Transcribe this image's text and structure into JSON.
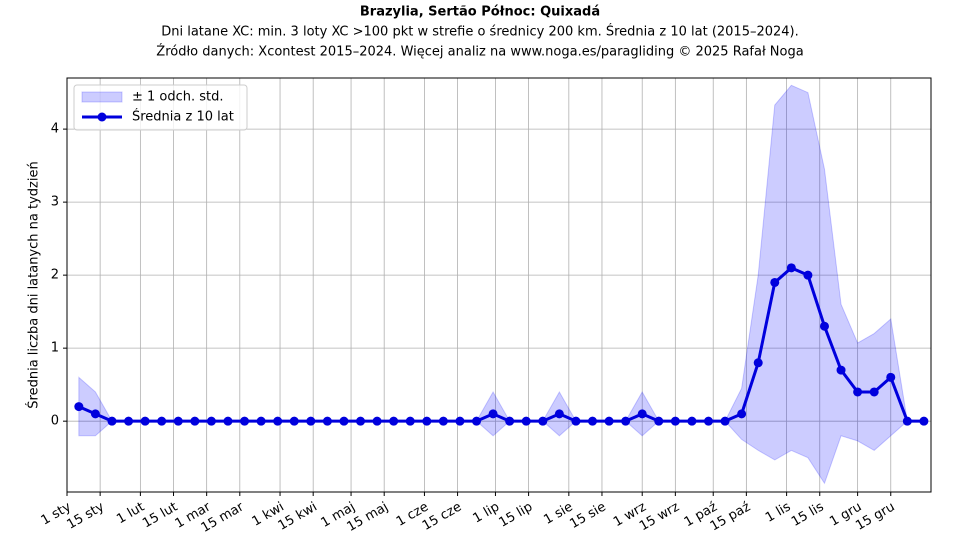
{
  "chart_data": {
    "type": "line",
    "title": "Brazylia, Sertão Północ: Quixadá",
    "subtitle": [
      "Dni latane XC: min. 3 loty XC >100 pkt w strefie o średnicy 200 km. Średnia z 10 lat (2015–2024).",
      "Źródło danych: Xcontest 2015–2024. Więcej analiz na www.noga.es/paragliding © 2025 Rafał Noga"
    ],
    "ylabel": "Średnia liczba dni latanych na tydzień",
    "x": [
      5,
      12,
      19,
      26,
      33,
      40,
      47,
      54,
      61,
      68,
      75,
      82,
      89,
      96,
      103,
      110,
      117,
      124,
      131,
      138,
      145,
      152,
      159,
      166,
      173,
      180,
      187,
      194,
      201,
      208,
      215,
      222,
      229,
      236,
      243,
      250,
      257,
      264,
      271,
      278,
      285,
      292,
      299,
      306,
      313,
      320,
      327,
      334,
      341,
      348,
      355,
      362
    ],
    "series": [
      {
        "name": "Średnia z 10 lat",
        "color": "#0000dd",
        "values": [
          0.2,
          0.1,
          0,
          0,
          0,
          0,
          0,
          0,
          0,
          0,
          0,
          0,
          0,
          0,
          0,
          0,
          0,
          0,
          0,
          0,
          0,
          0,
          0,
          0,
          0,
          0.1,
          0,
          0,
          0,
          0.1,
          0,
          0,
          0,
          0,
          0.1,
          0,
          0,
          0,
          0,
          0,
          0.1,
          0.8,
          1.9,
          2.1,
          2.0,
          1.3,
          0.7,
          0.4,
          0.4,
          0.6,
          0,
          0
        ]
      }
    ],
    "band": {
      "name": "± 1 odch. std.",
      "color": "#0000ff",
      "values": [
        0.4,
        0.3,
        0,
        0,
        0,
        0,
        0,
        0,
        0,
        0,
        0,
        0,
        0,
        0,
        0,
        0,
        0,
        0,
        0,
        0,
        0,
        0,
        0,
        0,
        0,
        0.3,
        0,
        0,
        0,
        0.3,
        0,
        0,
        0,
        0,
        0.3,
        0,
        0,
        0,
        0,
        0,
        0.35,
        1.2,
        2.43,
        2.5,
        2.5,
        2.15,
        0.9,
        0.67,
        0.8,
        0.8,
        0,
        0
      ]
    },
    "xlim": [
      0,
      365
    ],
    "xticks": [
      {
        "value": 0,
        "label": "1 sty"
      },
      {
        "value": 14,
        "label": "15 sty"
      },
      {
        "value": 31,
        "label": "1 lut"
      },
      {
        "value": 45,
        "label": "15 lut"
      },
      {
        "value": 59,
        "label": "1 mar"
      },
      {
        "value": 73,
        "label": "15 mar"
      },
      {
        "value": 90,
        "label": "1 kwi"
      },
      {
        "value": 104,
        "label": "15 kwi"
      },
      {
        "value": 120,
        "label": "1 maj"
      },
      {
        "value": 134,
        "label": "15 maj"
      },
      {
        "value": 151,
        "label": "1 cze"
      },
      {
        "value": 165,
        "label": "15 cze"
      },
      {
        "value": 181,
        "label": "1 lip"
      },
      {
        "value": 195,
        "label": "15 lip"
      },
      {
        "value": 212,
        "label": "1 sie"
      },
      {
        "value": 226,
        "label": "15 sie"
      },
      {
        "value": 243,
        "label": "1 wrz"
      },
      {
        "value": 257,
        "label": "15 wrz"
      },
      {
        "value": 273,
        "label": "1 paź"
      },
      {
        "value": 287,
        "label": "15 paź"
      },
      {
        "value": 304,
        "label": "1 lis"
      },
      {
        "value": 318,
        "label": "15 lis"
      },
      {
        "value": 334,
        "label": "1 gru"
      },
      {
        "value": 348,
        "label": "15 gru"
      }
    ],
    "ylim": [
      -0.97,
      4.7
    ],
    "yticks": [
      0,
      1,
      2,
      3,
      4
    ],
    "grid": true,
    "legend": "upper left"
  }
}
